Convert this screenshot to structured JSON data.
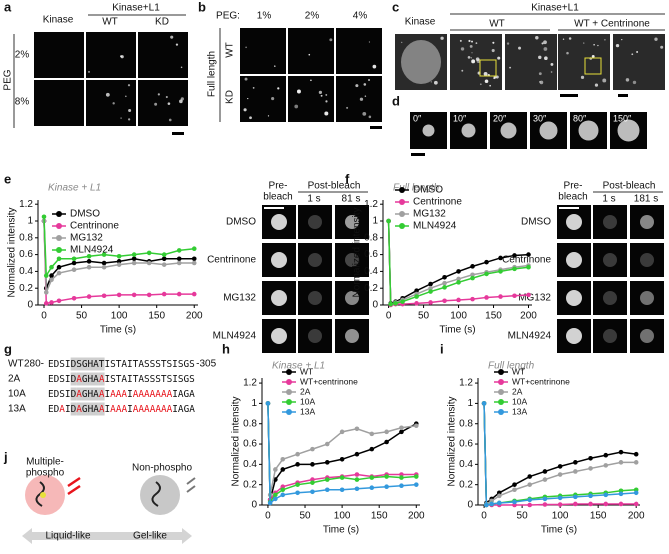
{
  "panel_labels": [
    "a",
    "b",
    "c",
    "d",
    "e",
    "f",
    "g",
    "h",
    "i",
    "j"
  ],
  "panel_a": {
    "col_header": "Kinase",
    "group_header": "Kinase+L1",
    "cols": [
      "WT",
      "KD"
    ],
    "rows": [
      "2%",
      "8%"
    ],
    "row_title": "PEG"
  },
  "panel_b": {
    "row_header": "PEG:",
    "cols": [
      "1%",
      "2%",
      "4%"
    ],
    "rows": [
      "WT",
      "KD"
    ],
    "row_title": "Full length"
  },
  "panel_c": {
    "col_header": "Kinase",
    "group_header": "Kinase+L1",
    "cols": [
      "WT",
      "WT + Centrinone"
    ]
  },
  "panel_d": {
    "times": [
      "0″",
      "10″",
      "20″",
      "30″",
      "80″",
      "150″"
    ]
  },
  "panel_e_insets": {
    "pre": "Pre-",
    "pre2": "bleach",
    "post": "Post-bleach",
    "times": [
      "1 s",
      "81 s"
    ]
  },
  "panel_f_insets": {
    "pre": "Pre-",
    "pre2": "bleach",
    "post": "Post-bleach",
    "times": [
      "1 s",
      "181 s"
    ]
  },
  "panel_g": {
    "rows": [
      {
        "label": "WT",
        "start": "280-",
        "end": "-305",
        "segments": [
          {
            "text": "EDSI"
          },
          {
            "text": "DSGHAT",
            "shade": "#cfcfcf"
          },
          {
            "text": "ISTAITASSSTSISGS"
          }
        ]
      },
      {
        "label": "2A",
        "segments": [
          {
            "text": "EDSI"
          },
          {
            "text": "D",
            "shade": "#cfcfcf"
          },
          {
            "text": "A",
            "shade": "#cfcfcf",
            "color": "#e8141c"
          },
          {
            "text": "GHA",
            "shade": "#cfcfcf"
          },
          {
            "text": "A",
            "shade": "#cfcfcf",
            "color": "#e8141c"
          },
          {
            "text": "ISTAITASSSTSISGS"
          }
        ]
      },
      {
        "label": "10A",
        "segments": [
          {
            "text": "EDSI"
          },
          {
            "text": "D",
            "shade": "#cfcfcf"
          },
          {
            "text": "A",
            "shade": "#cfcfcf",
            "color": "#e8141c"
          },
          {
            "text": "GHA",
            "shade": "#cfcfcf"
          },
          {
            "text": "A",
            "shade": "#cfcfcf",
            "color": "#e8141c"
          },
          {
            "text": "I"
          },
          {
            "text": "AAA",
            "color": "#e8141c"
          },
          {
            "text": "I"
          },
          {
            "text": "AAAAAAA",
            "color": "#e8141c"
          },
          {
            "text": "IAGA"
          }
        ]
      },
      {
        "label": "13A",
        "segments": [
          {
            "text": "ED"
          },
          {
            "text": "A",
            "color": "#e8141c"
          },
          {
            "text": "I"
          },
          {
            "text": "D",
            "shade": "#cfcfcf"
          },
          {
            "text": "A",
            "shade": "#cfcfcf",
            "color": "#e8141c"
          },
          {
            "text": "GHA",
            "shade": "#cfcfcf"
          },
          {
            "text": "A",
            "shade": "#cfcfcf",
            "color": "#e8141c"
          },
          {
            "text": "I"
          },
          {
            "text": "AAA",
            "color": "#e8141c"
          },
          {
            "text": "I"
          },
          {
            "text": "AAAAAAA",
            "color": "#e8141c"
          },
          {
            "text": "IAGA"
          }
        ]
      }
    ]
  },
  "panel_j": {
    "left": "Multiple-",
    "left2": "phospho",
    "right": "Non-phospho",
    "axis_left": "Liquid-like",
    "axis_right": "Gel-like"
  },
  "chart_data": [
    {
      "type": "line",
      "title": "Kinase + L1",
      "xlabel": "Time (s)",
      "ylabel": "Normalized intensity",
      "x": [
        0,
        3,
        10,
        20,
        40,
        60,
        80,
        100,
        120,
        140,
        160,
        180,
        200
      ],
      "xlim": [
        -8,
        205
      ],
      "xticks": [
        0,
        50,
        100,
        150,
        200
      ],
      "ylim": [
        0,
        1.25
      ],
      "yticks": [
        0,
        0.2,
        0.4,
        0.6,
        0.8,
        1,
        1.2
      ],
      "series": [
        {
          "name": "DMSO",
          "color": "#000000",
          "values": [
            1.0,
            0.2,
            0.35,
            0.45,
            0.5,
            0.52,
            0.5,
            0.52,
            0.55,
            0.52,
            0.55,
            0.55,
            0.55
          ]
        },
        {
          "name": "Centrinone",
          "color": "#e6399b",
          "values": [
            1.0,
            0.02,
            0.03,
            0.05,
            0.08,
            0.1,
            0.11,
            0.12,
            0.12,
            0.12,
            0.13,
            0.13,
            0.13
          ]
        },
        {
          "name": "MG132",
          "color": "#a0a0a0",
          "values": [
            1.0,
            0.15,
            0.3,
            0.38,
            0.42,
            0.45,
            0.45,
            0.48,
            0.5,
            0.5,
            0.48,
            0.5,
            0.5
          ]
        },
        {
          "name": "MLN4924",
          "color": "#33cc33",
          "values": [
            1.05,
            0.35,
            0.45,
            0.55,
            0.55,
            0.58,
            0.6,
            0.58,
            0.6,
            0.62,
            0.6,
            0.65,
            0.67
          ]
        }
      ]
    },
    {
      "type": "line",
      "title": "Full length",
      "xlabel": "Time (s)",
      "ylabel": "Normalized intensity",
      "x": [
        0,
        3,
        10,
        20,
        40,
        60,
        80,
        100,
        120,
        140,
        160,
        180,
        200
      ],
      "xlim": [
        -8,
        205
      ],
      "xticks": [
        0,
        50,
        100,
        150,
        200
      ],
      "ylim": [
        0,
        1.25
      ],
      "yticks": [
        0,
        0.2,
        0.4,
        0.6,
        0.8,
        1,
        1.2
      ],
      "series": [
        {
          "name": "DMSO",
          "color": "#000000",
          "values": [
            1,
            0.02,
            0.04,
            0.08,
            0.17,
            0.25,
            0.33,
            0.4,
            0.46,
            0.51,
            0.56,
            0.59,
            0.6
          ]
        },
        {
          "name": "Centrinone",
          "color": "#e6399b",
          "values": [
            1,
            0,
            0.01,
            0.01,
            0.02,
            0.03,
            0.05,
            0.06,
            0.07,
            0.09,
            0.1,
            0.11,
            0.12
          ]
        },
        {
          "name": "MG132",
          "color": "#a0a0a0",
          "values": [
            1,
            0.01,
            0.03,
            0.06,
            0.13,
            0.2,
            0.26,
            0.31,
            0.36,
            0.39,
            0.42,
            0.45,
            0.47
          ]
        },
        {
          "name": "MLN4924",
          "color": "#33cc33",
          "values": [
            1,
            0.01,
            0.02,
            0.04,
            0.1,
            0.16,
            0.21,
            0.27,
            0.32,
            0.37,
            0.4,
            0.43,
            0.45
          ]
        }
      ]
    },
    {
      "type": "line",
      "title": "Kinase + L1",
      "xlabel": "Time (s)",
      "ylabel": "Normalized intensity",
      "x": [
        0,
        3,
        10,
        20,
        40,
        60,
        80,
        100,
        120,
        140,
        160,
        180,
        200
      ],
      "xlim": [
        -8,
        205
      ],
      "xticks": [
        0,
        50,
        100,
        150,
        200
      ],
      "ylim": [
        0,
        1.25
      ],
      "yticks": [
        0,
        0.2,
        0.4,
        0.6,
        0.8,
        1,
        1.2
      ],
      "series": [
        {
          "name": "WT",
          "color": "#000000",
          "values": [
            1,
            0.05,
            0.25,
            0.35,
            0.4,
            0.4,
            0.42,
            0.45,
            0.5,
            0.55,
            0.62,
            0.72,
            0.8
          ]
        },
        {
          "name": "WT+centrinone",
          "color": "#e6399b",
          "values": [
            1,
            0.05,
            0.12,
            0.18,
            0.22,
            0.25,
            0.27,
            0.28,
            0.3,
            0.28,
            0.3,
            0.3,
            0.3
          ]
        },
        {
          "name": "2A",
          "color": "#a0a0a0",
          "values": [
            1,
            0.1,
            0.35,
            0.45,
            0.5,
            0.55,
            0.6,
            0.72,
            0.75,
            0.7,
            0.72,
            0.76,
            0.78
          ]
        },
        {
          "name": "10A",
          "color": "#33cc33",
          "values": [
            1,
            0.03,
            0.1,
            0.15,
            0.2,
            0.22,
            0.25,
            0.27,
            0.25,
            0.27,
            0.28,
            0.27,
            0.28
          ]
        },
        {
          "name": "13A",
          "color": "#3399dd",
          "values": [
            1,
            0.02,
            0.06,
            0.1,
            0.12,
            0.13,
            0.15,
            0.15,
            0.16,
            0.17,
            0.18,
            0.19,
            0.2
          ]
        }
      ]
    },
    {
      "type": "line",
      "title": "Full length",
      "xlabel": "Time (s)",
      "ylabel": "Normalized intensity",
      "x": [
        0,
        3,
        10,
        20,
        40,
        60,
        80,
        100,
        120,
        140,
        160,
        180,
        200
      ],
      "xlim": [
        -8,
        205
      ],
      "xticks": [
        0,
        50,
        100,
        150,
        200
      ],
      "ylim": [
        0,
        1.25
      ],
      "yticks": [
        0,
        0.2,
        0.4,
        0.6,
        0.8,
        1,
        1.2
      ],
      "series": [
        {
          "name": "WT",
          "color": "#000000",
          "values": [
            1,
            0.02,
            0.06,
            0.12,
            0.2,
            0.28,
            0.33,
            0.38,
            0.42,
            0.46,
            0.49,
            0.52,
            0.5
          ]
        },
        {
          "name": "WT+centrinone",
          "color": "#e6399b",
          "values": [
            1,
            0,
            0,
            0,
            0,
            0,
            0.005,
            0.005,
            0.01,
            0.01,
            0.01,
            0.01,
            0.01
          ]
        },
        {
          "name": "2A",
          "color": "#a0a0a0",
          "values": [
            1,
            0.01,
            0.04,
            0.09,
            0.15,
            0.2,
            0.25,
            0.3,
            0.33,
            0.36,
            0.39,
            0.42,
            0.42
          ]
        },
        {
          "name": "10A",
          "color": "#33cc33",
          "values": [
            1,
            0,
            0.01,
            0.02,
            0.04,
            0.06,
            0.08,
            0.09,
            0.1,
            0.11,
            0.12,
            0.14,
            0.15
          ]
        },
        {
          "name": "13A",
          "color": "#3399dd",
          "values": [
            1,
            0,
            0.01,
            0.02,
            0.03,
            0.05,
            0.06,
            0.07,
            0.08,
            0.09,
            0.1,
            0.11,
            0.12
          ]
        }
      ]
    }
  ]
}
